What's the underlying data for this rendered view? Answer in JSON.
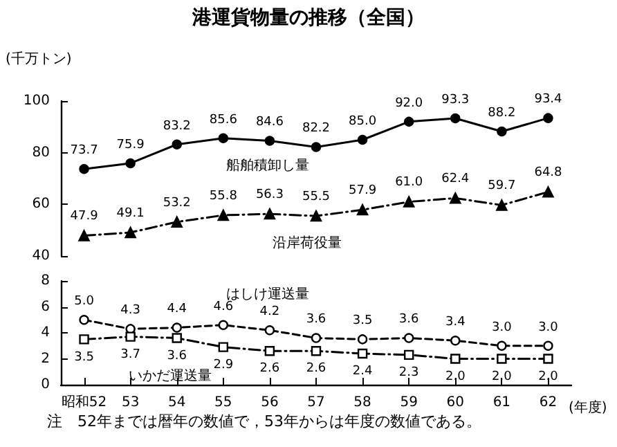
{
  "chart_data": [
    {
      "type": "line",
      "title": "港運貨物量の推移（全国）",
      "ylabel": "(千万トン)",
      "ylim": [
        40,
        100
      ],
      "yticks": [
        40,
        60,
        80,
        100
      ],
      "tick_labels": "y",
      "grid": false,
      "legend": false,
      "series": [
        {
          "name": "船舶積卸し量",
          "color": "#000000",
          "marker": "circle",
          "line_style": "solid",
          "values": [
            73.7,
            75.9,
            83.2,
            85.6,
            84.6,
            82.2,
            85.0,
            92.0,
            93.3,
            88.2,
            93.4
          ],
          "value_labels": [
            "73.7",
            "75.9",
            "83.2",
            "85.6",
            "84.6",
            "82.2",
            "85.0",
            "92.0",
            "93.3",
            "88.2",
            "93.4"
          ]
        },
        {
          "name": "沿岸荷役量",
          "color": "#000000",
          "marker": "triangle",
          "line_style": "dashdot",
          "values": [
            47.9,
            49.1,
            53.2,
            55.8,
            56.3,
            55.5,
            57.9,
            61.0,
            62.4,
            59.7,
            64.8
          ],
          "value_labels": [
            "47.9",
            "49.1",
            "53.2",
            "55.8",
            "56.3",
            "55.5",
            "57.9",
            "61.0",
            "62.4",
            "59.7",
            "64.8"
          ]
        }
      ]
    },
    {
      "type": "line",
      "xlabel": "(年度)",
      "categories": [
        "昭和52",
        "53",
        "54",
        "55",
        "56",
        "57",
        "58",
        "59",
        "60",
        "61",
        "62"
      ],
      "ylim": [
        0,
        8
      ],
      "yticks": [
        0,
        2,
        4,
        6,
        8
      ],
      "grid": false,
      "legend": false,
      "annotations": [
        "注　52年までは暦年の数値で，53年からは年度の数値である。"
      ],
      "series": [
        {
          "name": "はしけ運送量",
          "color": "#000000",
          "marker": "circle",
          "line_style": "dashed",
          "values": [
            5.0,
            4.3,
            4.4,
            4.6,
            4.2,
            3.6,
            3.5,
            3.6,
            3.4,
            3.0,
            3.0
          ],
          "value_labels": [
            "5.0",
            "4.3",
            "4.4",
            "4.6",
            "4.2",
            "3.6",
            "3.5",
            "3.6",
            "3.4",
            "3.0",
            "3.0"
          ]
        },
        {
          "name": "いかだ運送量",
          "color": "#000000",
          "marker": "square",
          "line_style": "dashdot",
          "values": [
            3.5,
            3.7,
            3.6,
            2.9,
            2.6,
            2.6,
            2.4,
            2.3,
            2.0,
            2.0,
            2.0
          ],
          "value_labels": [
            "3.5",
            "3.7",
            "3.6",
            "2.9",
            "2.6",
            "2.6",
            "2.4",
            "2.3",
            "2.0",
            "2.0",
            "2.0"
          ]
        }
      ]
    }
  ]
}
